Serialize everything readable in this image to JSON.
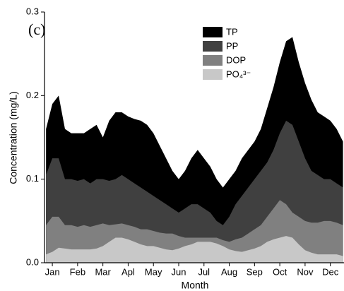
{
  "chart_data": {
    "type": "area",
    "annotation": "(c)",
    "x_label": "Month",
    "y_label": "Concentration (mg/L)",
    "x": [
      0.75,
      1.0,
      1.25,
      1.5,
      1.75,
      2.0,
      2.25,
      2.5,
      2.75,
      3.0,
      3.25,
      3.5,
      3.75,
      4.0,
      4.25,
      4.5,
      4.75,
      5.0,
      5.25,
      5.5,
      5.75,
      6.0,
      6.25,
      6.5,
      6.75,
      7.0,
      7.25,
      7.5,
      7.75,
      8.0,
      8.25,
      8.5,
      8.75,
      9.0,
      9.25,
      9.5,
      9.75,
      10.0,
      10.25,
      10.5,
      10.75,
      11.0,
      11.25,
      11.5,
      11.75,
      12.0,
      12.25,
      12.5
    ],
    "xlim": [
      0.69,
      12.54
    ],
    "xticks": [
      {
        "value": 1,
        "label": "Jan"
      },
      {
        "value": 2,
        "label": "Feb"
      },
      {
        "value": 3,
        "label": "Mar"
      },
      {
        "value": 4,
        "label": "Apl"
      },
      {
        "value": 5,
        "label": "May"
      },
      {
        "value": 6,
        "label": "Jun"
      },
      {
        "value": 7,
        "label": "Jul"
      },
      {
        "value": 8,
        "label": "Aug"
      },
      {
        "value": 9,
        "label": "Sep"
      },
      {
        "value": 10,
        "label": "Oct"
      },
      {
        "value": 11,
        "label": "Nov"
      },
      {
        "value": 12,
        "label": "Dec"
      }
    ],
    "ylim": [
      0,
      0.3
    ],
    "yticks": [
      {
        "value": 0,
        "label": "0.0"
      },
      0.1,
      0.2,
      0.3
    ],
    "legend_position": "top-right",
    "series": [
      {
        "name": "TP",
        "color": "#000000",
        "values": [
          0.16,
          0.19,
          0.2,
          0.16,
          0.155,
          0.155,
          0.155,
          0.16,
          0.165,
          0.15,
          0.17,
          0.18,
          0.18,
          0.175,
          0.172,
          0.17,
          0.165,
          0.155,
          0.14,
          0.125,
          0.11,
          0.1,
          0.11,
          0.125,
          0.135,
          0.125,
          0.115,
          0.1,
          0.09,
          0.1,
          0.11,
          0.125,
          0.135,
          0.145,
          0.16,
          0.185,
          0.21,
          0.24,
          0.265,
          0.27,
          0.24,
          0.215,
          0.195,
          0.18,
          0.175,
          0.17,
          0.16,
          0.145
        ]
      },
      {
        "name": "PP",
        "color": "#404040",
        "values": [
          0.105,
          0.125,
          0.125,
          0.1,
          0.1,
          0.098,
          0.1,
          0.095,
          0.1,
          0.1,
          0.098,
          0.1,
          0.105,
          0.1,
          0.095,
          0.09,
          0.085,
          0.08,
          0.075,
          0.07,
          0.065,
          0.06,
          0.065,
          0.07,
          0.07,
          0.065,
          0.06,
          0.05,
          0.045,
          0.055,
          0.07,
          0.08,
          0.09,
          0.1,
          0.11,
          0.12,
          0.135,
          0.155,
          0.17,
          0.165,
          0.145,
          0.125,
          0.11,
          0.105,
          0.1,
          0.1,
          0.095,
          0.09
        ]
      },
      {
        "name": "DOP",
        "color": "#808080",
        "values": [
          0.045,
          0.055,
          0.055,
          0.045,
          0.045,
          0.043,
          0.045,
          0.043,
          0.045,
          0.047,
          0.045,
          0.046,
          0.047,
          0.045,
          0.043,
          0.04,
          0.04,
          0.038,
          0.036,
          0.035,
          0.035,
          0.032,
          0.03,
          0.03,
          0.03,
          0.03,
          0.03,
          0.03,
          0.027,
          0.025,
          0.028,
          0.03,
          0.035,
          0.04,
          0.045,
          0.055,
          0.065,
          0.075,
          0.07,
          0.06,
          0.055,
          0.05,
          0.048,
          0.048,
          0.05,
          0.05,
          0.048,
          0.045
        ]
      },
      {
        "name": "PO₄³⁻",
        "color": "#c8c8c8",
        "values": [
          0.01,
          0.013,
          0.018,
          0.017,
          0.016,
          0.016,
          0.016,
          0.016,
          0.017,
          0.02,
          0.025,
          0.03,
          0.03,
          0.028,
          0.025,
          0.022,
          0.02,
          0.02,
          0.018,
          0.016,
          0.015,
          0.017,
          0.02,
          0.022,
          0.025,
          0.025,
          0.025,
          0.023,
          0.02,
          0.016,
          0.014,
          0.013,
          0.015,
          0.017,
          0.02,
          0.025,
          0.028,
          0.03,
          0.032,
          0.03,
          0.022,
          0.015,
          0.012,
          0.01,
          0.01,
          0.01,
          0.01,
          0.008
        ]
      }
    ]
  }
}
